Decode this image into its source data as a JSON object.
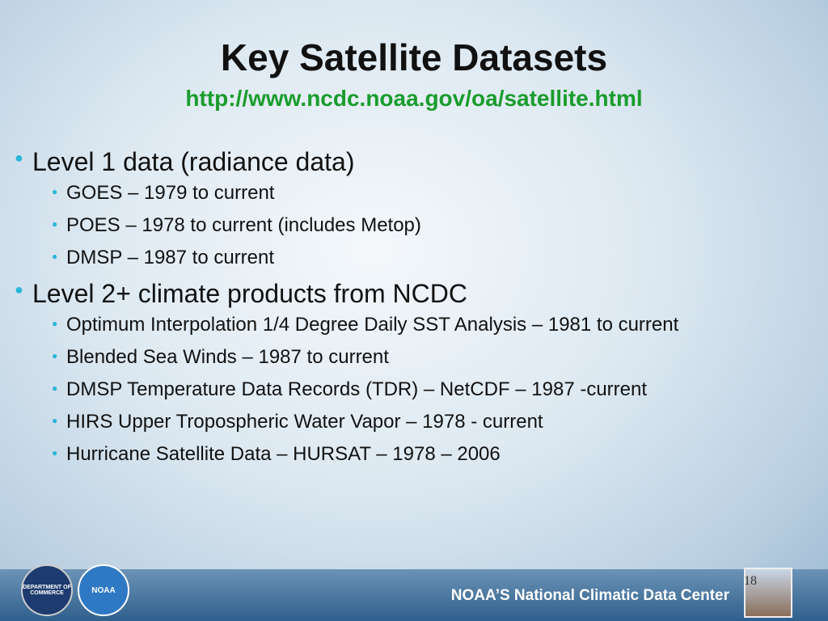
{
  "header": {
    "title": "Key Satellite Datasets",
    "url": "http://www.ncdc.noaa.gov/oa/satellite.html"
  },
  "bullets": [
    {
      "text": "Level 1 data (radiance data)",
      "items": [
        "GOES – 1979 to current",
        "POES – 1978 to current (includes Metop)",
        "DMSP – 1987 to current"
      ]
    },
    {
      "text": "Level 2+ climate products from NCDC",
      "items": [
        "Optimum Interpolation 1/4 Degree Daily SST Analysis – 1981 to current",
        "Blended Sea Winds – 1987 to current",
        "DMSP Temperature Data Records (TDR) – NetCDF – 1987 -current",
        "HIRS Upper Tropospheric Water Vapor – 1978 - current",
        "Hurricane Satellite Data – HURSAT – 1978 – 2006"
      ]
    }
  ],
  "footer": {
    "org": "NOAA’S National Climatic Data Center",
    "page": "18",
    "logo1": "DEPARTMENT OF COMMERCE",
    "logo2": "NOAA"
  }
}
